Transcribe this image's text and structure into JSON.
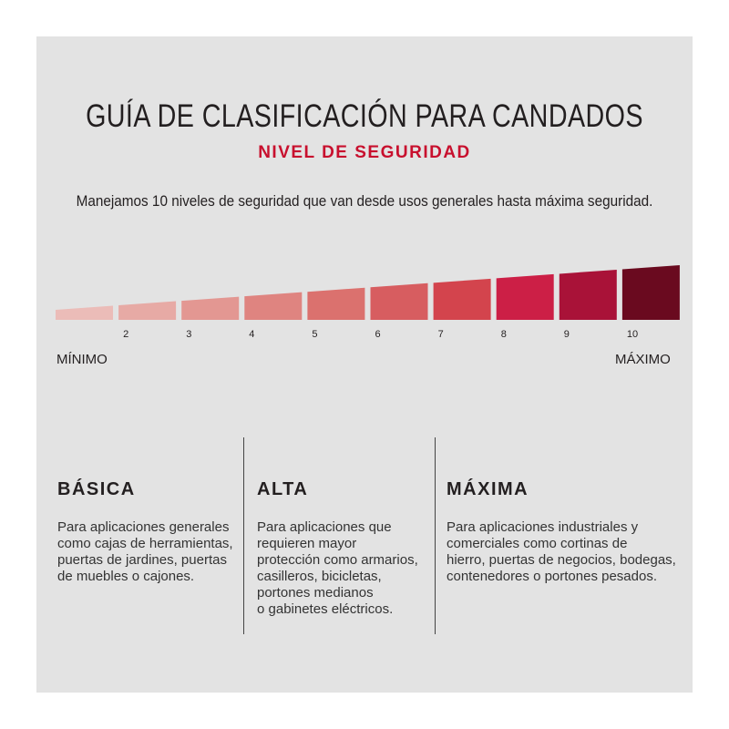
{
  "title": "GUÍA DE CLASIFICACIÓN PARA CANDADOS",
  "subtitle": "NIVEL DE SEGURIDAD",
  "intro": "Manejamos 10 niveles de seguridad que van desde usos generales hasta máxima seguridad.",
  "colors": {
    "background": "#e3e3e3",
    "accent": "#c8102e",
    "text": "#231f20"
  },
  "scale": {
    "min_label": "MÍNIMO",
    "max_label": "MÁXIMO",
    "levels": [
      {
        "level": 1,
        "label": "",
        "color": "#ebbcb8"
      },
      {
        "level": 2,
        "label": "2",
        "color": "#e7aaa5"
      },
      {
        "level": 3,
        "label": "3",
        "color": "#e39792"
      },
      {
        "level": 4,
        "label": "4",
        "color": "#df8480"
      },
      {
        "level": 5,
        "label": "5",
        "color": "#db716e"
      },
      {
        "level": 6,
        "label": "6",
        "color": "#d75d60"
      },
      {
        "level": 7,
        "label": "7",
        "color": "#d3444d"
      },
      {
        "level": 8,
        "label": "8",
        "color": "#cc1f46"
      },
      {
        "level": 9,
        "label": "9",
        "color": "#a91238"
      },
      {
        "level": 10,
        "label": "10",
        "color": "#6a0a1f"
      }
    ]
  },
  "categories": [
    {
      "heading": "BÁSICA",
      "body": "Para aplicaciones generales\ncomo cajas de herramientas,\npuertas de jardines, puertas\nde muebles o cajones."
    },
    {
      "heading": "ALTA",
      "body": "Para aplicaciones que\nrequieren mayor\nprotección como armarios,\ncasilleros, bicicletas,\nportones medianos\no gabinetes eléctricos."
    },
    {
      "heading": "MÁXIMA",
      "body": "Para aplicaciones industriales y\ncomerciales como cortinas de\nhierro, puertas de negocios, bodegas,\ncontenedores o portones pesados."
    }
  ]
}
